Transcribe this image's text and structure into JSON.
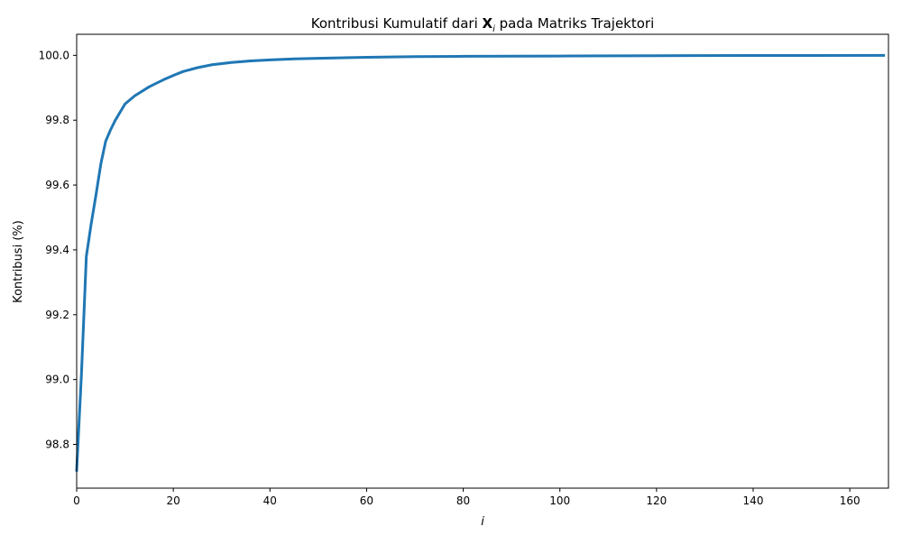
{
  "chart_data": {
    "type": "line",
    "title": {
      "prefix": "Kontribusi Kumulatif dari ",
      "symbol": "X",
      "subscript": "i",
      "suffix": " pada Matriks Trajektori"
    },
    "xlabel": "i",
    "ylabel": "Kontribusi (%)",
    "xlim": [
      0,
      168
    ],
    "ylim": [
      98.665,
      100.065
    ],
    "xticks": [
      0,
      20,
      40,
      60,
      80,
      100,
      120,
      140,
      160
    ],
    "yticks": [
      98.8,
      99.0,
      99.2,
      99.4,
      99.6,
      99.8,
      100.0
    ],
    "ytick_labels": [
      "98.8",
      "99.0",
      "99.2",
      "99.4",
      "99.6",
      "99.8",
      "100.0"
    ],
    "grid": false,
    "line_color": "#1f77b4",
    "series": [
      {
        "x": [
          0,
          1,
          2,
          3,
          4,
          5,
          6,
          7,
          8,
          10,
          12,
          15,
          18,
          20,
          22,
          25,
          28,
          32,
          36,
          40,
          45,
          50,
          60,
          70,
          80,
          100,
          120,
          140,
          167
        ],
        "y": [
          98.72,
          99.02,
          99.38,
          99.48,
          99.57,
          99.665,
          99.735,
          99.77,
          99.8,
          99.85,
          99.875,
          99.903,
          99.925,
          99.938,
          99.95,
          99.962,
          99.971,
          99.978,
          99.983,
          99.986,
          99.989,
          99.991,
          99.994,
          99.996,
          99.997,
          99.998,
          99.999,
          99.9995,
          100.0
        ]
      }
    ]
  }
}
